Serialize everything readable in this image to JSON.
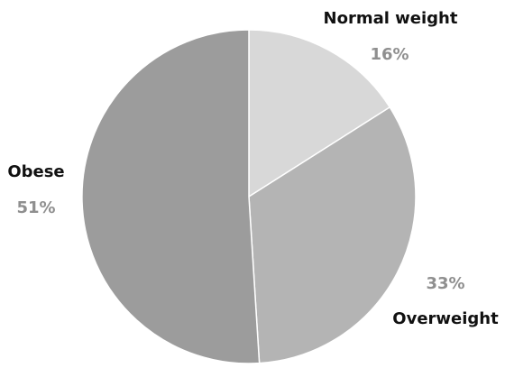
{
  "chart_data": {
    "type": "pie",
    "start_angle_deg": 0,
    "direction": "clockwise",
    "legend": "none",
    "slices": [
      {
        "label": "Normal weight",
        "value": 16,
        "value_label": "16%",
        "color": "#d8d8d8"
      },
      {
        "label": "Overweight",
        "value": 33,
        "value_label": "33%",
        "color": "#b4b4b4"
      },
      {
        "label": "Obese",
        "value": 51,
        "value_label": "51%",
        "color": "#9c9c9c"
      }
    ]
  }
}
